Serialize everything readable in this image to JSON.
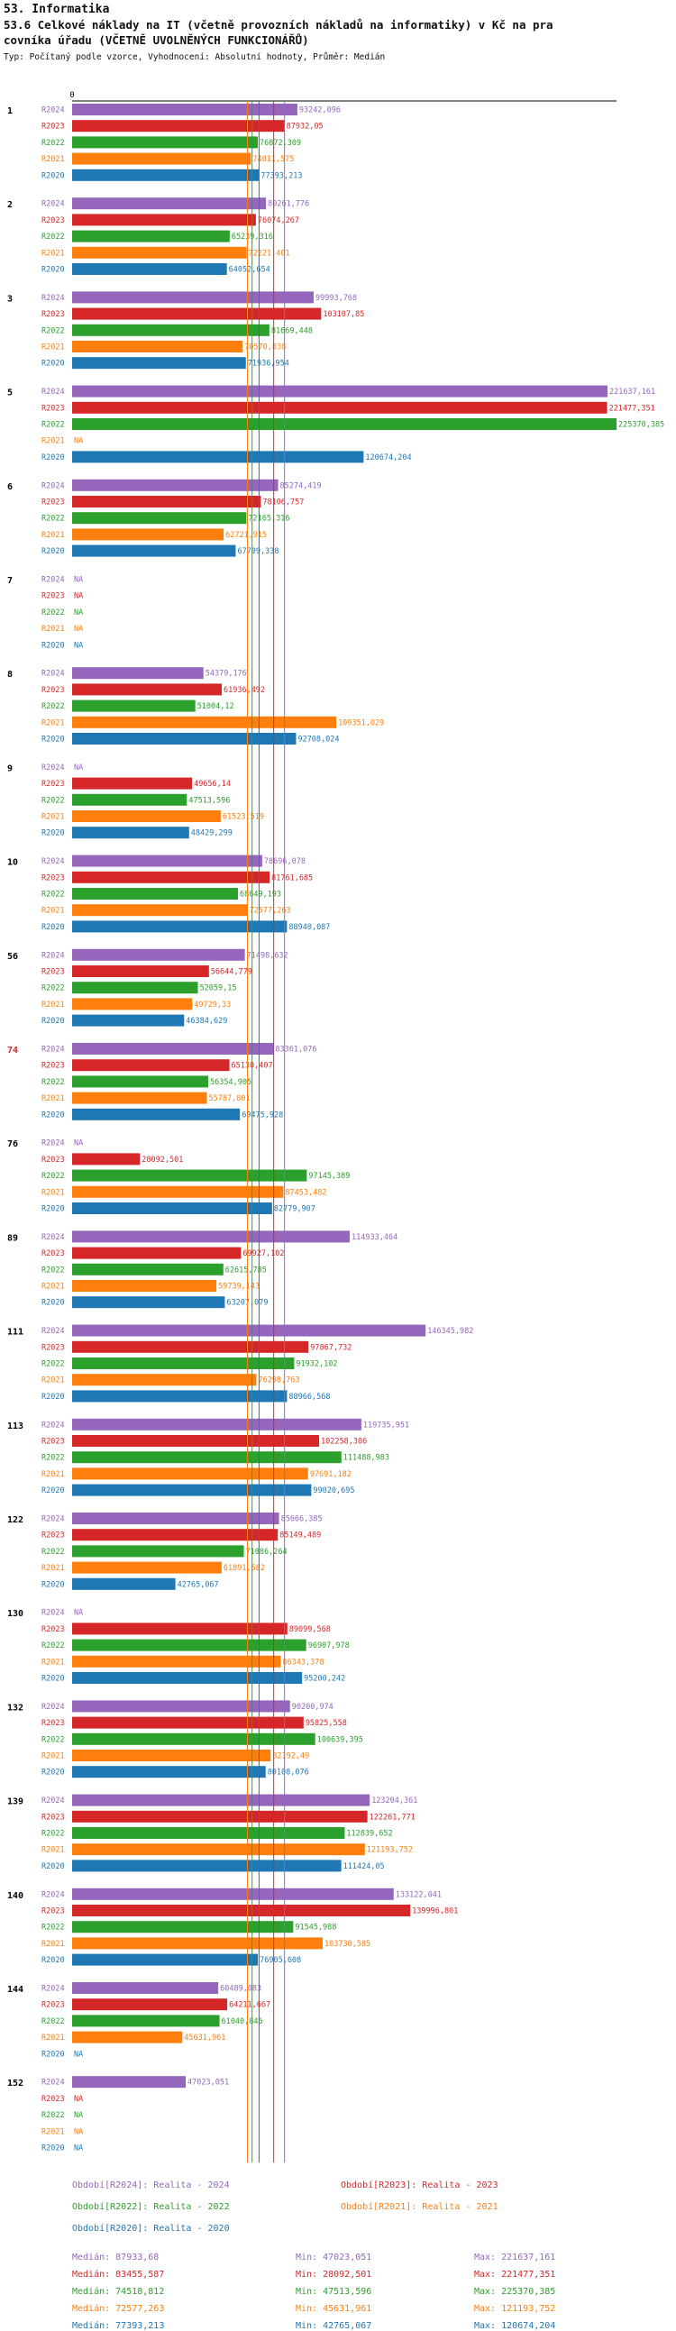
{
  "header": {
    "title": "53. Informatika",
    "subtitle": "53.6 Celkové náklady na IT (včetně provozních nákladů na informatiky) v Kč na pracovníka úřadu (VČETNĚ UVOLNĚNÝCH FUNKCIONÁŘŮ)",
    "subtitle_line1": "53.6 Celkové náklady na IT (včetně provozních nákladů na informatiky) v Kč na pra",
    "subtitle_line2": "covníka úřadu (VČETNĚ UVOLNĚNÝCH FUNKCIONÁŘŮ)",
    "meta": "Typ: Počítaný podle vzorce, Vyhodnocení: Absolutní hodnoty, Průměr: Medián"
  },
  "colors": {
    "R2024": "#9467bd",
    "R2023": "#d62728",
    "R2022": "#2ca02c",
    "R2021": "#ff7f0e",
    "R2020": "#1f77b4",
    "highlight_group": "#d62728"
  },
  "chart_data": {
    "type": "bar",
    "orientation": "horizontal",
    "axis_origin_label": "0",
    "xlim": [
      0,
      225370.385
    ],
    "series_order": [
      "R2024",
      "R2023",
      "R2022",
      "R2021",
      "R2020"
    ],
    "na_label": "NA",
    "highlight_group": "74",
    "groups": [
      {
        "label": "1",
        "values": [
          93242.096,
          87932.05,
          76872.309,
          74011.575,
          77393.213
        ],
        "labels": [
          "93242,096",
          "87932,05",
          "76872,309",
          "74011,575",
          "77393,213"
        ]
      },
      {
        "label": "2",
        "values": [
          80261.776,
          76074.267,
          65239.316,
          72221.401,
          64052.654
        ],
        "labels": [
          "80261,776",
          "76074,267",
          "65239,316",
          "72221,401",
          "64052,654"
        ]
      },
      {
        "label": "3",
        "values": [
          99993.768,
          103107.85,
          81669.448,
          70570.838,
          71936.954
        ],
        "labels": [
          "99993,768",
          "103107,85",
          "81669,448",
          "70570,838",
          "71936,954"
        ]
      },
      {
        "label": "5",
        "values": [
          221637.161,
          221477.351,
          225370.385,
          null,
          120674.204
        ],
        "labels": [
          "221637,161",
          "221477,351",
          "225370,385",
          "NA",
          "120674,204"
        ]
      },
      {
        "label": "6",
        "values": [
          85274.419,
          78106.757,
          72165.316,
          62721.915,
          67709.338
        ],
        "labels": [
          "85274,419",
          "78106,757",
          "72165,316",
          "62721,915",
          "67709,338"
        ]
      },
      {
        "label": "7",
        "values": [
          null,
          null,
          null,
          null,
          null
        ],
        "labels": [
          "NA",
          "NA",
          "NA",
          "NA",
          "NA"
        ]
      },
      {
        "label": "8",
        "values": [
          54379.176,
          61936.492,
          51004.12,
          109351.029,
          92708.024
        ],
        "labels": [
          "54379,176",
          "61936,492",
          "51004,12",
          "109351,029",
          "92708,024"
        ]
      },
      {
        "label": "9",
        "values": [
          null,
          49656.14,
          47513.596,
          61523.519,
          48429.299
        ],
        "labels": [
          "NA",
          "49656,14",
          "47513,596",
          "61523,519",
          "48429,299"
        ]
      },
      {
        "label": "10",
        "values": [
          78696.078,
          81761.685,
          68649.193,
          72577.263,
          88940.087
        ],
        "labels": [
          "78696,078",
          "81761,685",
          "68649,193",
          "72577,263",
          "88940,087"
        ]
      },
      {
        "label": "56",
        "values": [
          71498.632,
          56644.779,
          52059.15,
          49729.33,
          46384.629
        ],
        "labels": [
          "71498,632",
          "56644,779",
          "52059,15",
          "49729,33",
          "46384,629"
        ]
      },
      {
        "label": "74",
        "values": [
          83361.076,
          65130.407,
          56354.905,
          55787.801,
          69475.928
        ],
        "labels": [
          "83361,076",
          "65130,407",
          "56354,905",
          "55787,801",
          "69475,928"
        ]
      },
      {
        "label": "76",
        "values": [
          null,
          28092.501,
          97145.389,
          87453.482,
          82779.907
        ],
        "labels": [
          "NA",
          "28092,501",
          "97145,389",
          "87453,482",
          "82779,907"
        ]
      },
      {
        "label": "89",
        "values": [
          114933.464,
          69927.102,
          62615.785,
          59739.143,
          63207.079
        ],
        "labels": [
          "114933,464",
          "69927,102",
          "62615,785",
          "59739,143",
          "63207,079"
        ]
      },
      {
        "label": "111",
        "values": [
          146345.982,
          97867.732,
          91932.102,
          76298.763,
          88966.568
        ],
        "labels": [
          "146345,982",
          "97867,732",
          "91932,102",
          "76298,763",
          "88966,568"
        ]
      },
      {
        "label": "113",
        "values": [
          119735.951,
          102258.306,
          111488.983,
          97691.182,
          99020.695
        ],
        "labels": [
          "119735,951",
          "102258,306",
          "111488,983",
          "97691,182",
          "99020,695"
        ]
      },
      {
        "label": "122",
        "values": [
          85666.385,
          85149.489,
          71086.264,
          61891.582,
          42765.067
        ],
        "labels": [
          "85666,385",
          "85149,489",
          "71086,264",
          "61891,582",
          "42765,067"
        ]
      },
      {
        "label": "130",
        "values": [
          null,
          89099.568,
          96907.978,
          86343.378,
          95200.242
        ],
        "labels": [
          "NA",
          "89099,568",
          "96907,978",
          "86343,378",
          "95200,242"
        ]
      },
      {
        "label": "132",
        "values": [
          90200.974,
          95825.558,
          100639.395,
          82192.49,
          80108.076
        ],
        "labels": [
          "90200,974",
          "95825,558",
          "100639,395",
          "82192,49",
          "80108,076"
        ]
      },
      {
        "label": "139",
        "values": [
          123204.361,
          122261.771,
          112839.652,
          121193.752,
          111424.05
        ],
        "labels": [
          "123204,361",
          "122261,771",
          "112839,652",
          "121193,752",
          "111424,05"
        ]
      },
      {
        "label": "140",
        "values": [
          133122.041,
          139996.801,
          91545.988,
          103730.585,
          76905.608
        ],
        "labels": [
          "133122,041",
          "139996,801",
          "91545,988",
          "103730,585",
          "76905,608"
        ]
      },
      {
        "label": "144",
        "values": [
          60489.083,
          64211.667,
          61040.846,
          45631.961,
          null
        ],
        "labels": [
          "60489,083",
          "64211,667",
          "61040,846",
          "45631,961",
          "NA"
        ]
      },
      {
        "label": "152",
        "values": [
          47023.051,
          null,
          null,
          null,
          null
        ],
        "labels": [
          "47023,051",
          "NA",
          "NA",
          "NA",
          "NA"
        ]
      }
    ],
    "median_lines": [
      {
        "series": "R2024",
        "value": 87933.68
      },
      {
        "series": "R2023",
        "value": 83455.587
      },
      {
        "series": "R2022",
        "value": 74518.812
      },
      {
        "series": "R2021",
        "value": 72577.263
      },
      {
        "series": "R2020",
        "value": 77393.213
      }
    ],
    "legend": [
      {
        "series": "R2024",
        "label": "Období[R2024]: Realita - 2024"
      },
      {
        "series": "R2023",
        "label": "Období[R2023]: Realita - 2023"
      },
      {
        "series": "R2022",
        "label": "Období[R2022]: Realita - 2022"
      },
      {
        "series": "R2021",
        "label": "Období[R2021]: Realita - 2021"
      },
      {
        "series": "R2020",
        "label": "Období[R2020]: Realita - 2020"
      }
    ],
    "stats": [
      {
        "series": "R2024",
        "median": "Medián: 87933,68",
        "min": "Min: 47023,051",
        "max": "Max: 221637,161"
      },
      {
        "series": "R2023",
        "median": "Medián: 83455,587",
        "min": "Min: 28092,501",
        "max": "Max: 221477,351"
      },
      {
        "series": "R2022",
        "median": "Medián: 74518,812",
        "min": "Min: 47513,596",
        "max": "Max: 225370,385"
      },
      {
        "series": "R2021",
        "median": "Medián: 72577,263",
        "min": "Min: 45631,961",
        "max": "Max: 121193,752"
      },
      {
        "series": "R2020",
        "median": "Medián: 77393,213",
        "min": "Min: 42765,067",
        "max": "Max: 120674,204"
      }
    ]
  }
}
